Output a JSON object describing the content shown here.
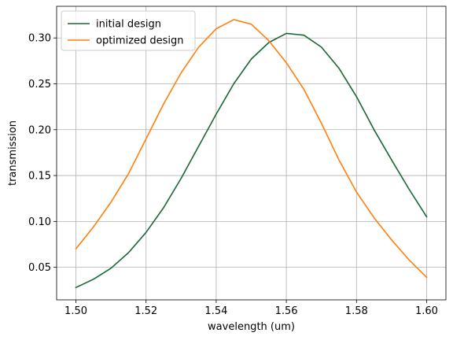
{
  "chart_data": {
    "type": "line",
    "title": "",
    "xlabel": "wavelength (um)",
    "ylabel": "transmission",
    "xlim": [
      1.4945,
      1.6055
    ],
    "ylim": [
      0.0145,
      0.3345
    ],
    "x_ticks": [
      1.5,
      1.52,
      1.54,
      1.56,
      1.58,
      1.6
    ],
    "x_tick_labels": [
      "1.50",
      "1.52",
      "1.54",
      "1.56",
      "1.58",
      "1.60"
    ],
    "y_ticks": [
      0.05,
      0.1,
      0.15,
      0.2,
      0.25,
      0.3
    ],
    "y_tick_labels": [
      "0.05",
      "0.10",
      "0.15",
      "0.20",
      "0.25",
      "0.30"
    ],
    "grid": true,
    "legend_position": "top-left",
    "x": [
      1.5,
      1.505,
      1.51,
      1.515,
      1.52,
      1.525,
      1.53,
      1.535,
      1.54,
      1.545,
      1.55,
      1.555,
      1.56,
      1.565,
      1.57,
      1.575,
      1.58,
      1.585,
      1.59,
      1.595,
      1.6
    ],
    "series": [
      {
        "name": "initial design",
        "color": "#1b6536",
        "values": [
          0.028,
          0.037,
          0.049,
          0.066,
          0.088,
          0.115,
          0.147,
          0.182,
          0.217,
          0.25,
          0.277,
          0.295,
          0.305,
          0.303,
          0.29,
          0.267,
          0.236,
          0.2,
          0.167,
          0.135,
          0.105
        ]
      },
      {
        "name": "optimized design",
        "color": "#ff7f0e",
        "values": [
          0.07,
          0.094,
          0.121,
          0.152,
          0.19,
          0.228,
          0.262,
          0.29,
          0.31,
          0.32,
          0.315,
          0.297,
          0.273,
          0.244,
          0.207,
          0.167,
          0.132,
          0.104,
          0.08,
          0.058,
          0.039
        ]
      }
    ]
  }
}
